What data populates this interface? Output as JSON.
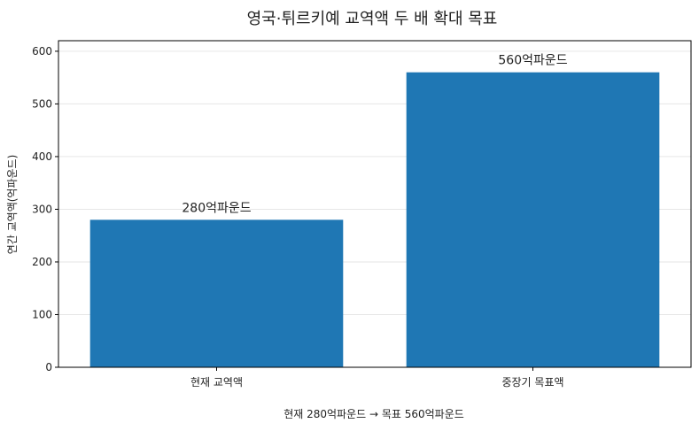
{
  "chart_data": {
    "type": "bar",
    "title": "영국·튀르키예 교역액 두 배 확대 목표",
    "categories": [
      "현재 교역액",
      "중장기 목표액"
    ],
    "values": [
      280,
      560
    ],
    "data_labels": [
      "280억파운드",
      "560억파운드"
    ],
    "xlabel": "현재 280억파운드 → 목표 560억파운드",
    "ylabel": "연간 교역액(억파운드)",
    "ylim": [
      0,
      620
    ],
    "yticks": [
      0,
      100,
      200,
      300,
      400,
      500,
      600
    ],
    "grid": true,
    "legend": "none",
    "bar_color": "#1f77b4"
  }
}
